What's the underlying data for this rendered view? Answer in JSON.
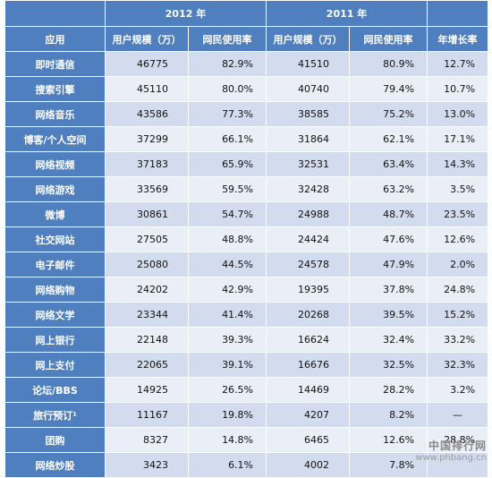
{
  "header": {
    "year_2012": "2012 年",
    "year_2011": "2011 年",
    "col_app": "应用",
    "col_users_2012": "用户规模（万）",
    "col_rate_2012": "网民使用率",
    "col_users_2011": "用户规模（万）",
    "col_rate_2011": "网民使用率",
    "col_growth": "年增长率"
  },
  "rows": [
    {
      "app": "即时通信",
      "u2012": "46775",
      "r2012": "82.9%",
      "u2011": "41510",
      "r2011": "80.9%",
      "growth": "12.7%"
    },
    {
      "app": "搜索引擎",
      "u2012": "45110",
      "r2012": "80.0%",
      "u2011": "40740",
      "r2011": "79.4%",
      "growth": "10.7%"
    },
    {
      "app": "网络音乐",
      "u2012": "43586",
      "r2012": "77.3%",
      "u2011": "38585",
      "r2011": "75.2%",
      "growth": "13.0%"
    },
    {
      "app": "博客/个人空间",
      "u2012": "37299",
      "r2012": "66.1%",
      "u2011": "31864",
      "r2011": "62.1%",
      "growth": "17.1%"
    },
    {
      "app": "网络视频",
      "u2012": "37183",
      "r2012": "65.9%",
      "u2011": "32531",
      "r2011": "63.4%",
      "growth": "14.3%"
    },
    {
      "app": "网络游戏",
      "u2012": "33569",
      "r2012": "59.5%",
      "u2011": "32428",
      "r2011": "63.2%",
      "growth": "3.5%"
    },
    {
      "app": "微博",
      "u2012": "30861",
      "r2012": "54.7%",
      "u2011": "24988",
      "r2011": "48.7%",
      "growth": "23.5%"
    },
    {
      "app": "社交网站",
      "u2012": "27505",
      "r2012": "48.8%",
      "u2011": "24424",
      "r2011": "47.6%",
      "growth": "12.6%"
    },
    {
      "app": "电子邮件",
      "u2012": "25080",
      "r2012": "44.5%",
      "u2011": "24578",
      "r2011": "47.9%",
      "growth": "2.0%"
    },
    {
      "app": "网络购物",
      "u2012": "24202",
      "r2012": "42.9%",
      "u2011": "19395",
      "r2011": "37.8%",
      "growth": "24.8%"
    },
    {
      "app": "网络文学",
      "u2012": "23344",
      "r2012": "41.4%",
      "u2011": "20268",
      "r2011": "39.5%",
      "growth": "15.2%"
    },
    {
      "app": "网上银行",
      "u2012": "22148",
      "r2012": "39.3%",
      "u2011": "16624",
      "r2011": "32.4%",
      "growth": "33.2%"
    },
    {
      "app": "网上支付",
      "u2012": "22065",
      "r2012": "39.1%",
      "u2011": "16676",
      "r2011": "32.5%",
      "growth": "32.3%"
    },
    {
      "app": "论坛/BBS",
      "u2012": "14925",
      "r2012": "26.5%",
      "u2011": "14469",
      "r2011": "28.2%",
      "growth": "3.2%"
    },
    {
      "app": "旅行预订¹",
      "u2012": "11167",
      "r2012": "19.8%",
      "u2011": "4207",
      "r2011": "8.2%",
      "growth": "—"
    },
    {
      "app": "团购",
      "u2012": "8327",
      "r2012": "14.8%",
      "u2011": "6465",
      "r2011": "12.6%",
      "growth": "28.8%"
    },
    {
      "app": "网络炒股",
      "u2012": "3423",
      "r2012": "6.1%",
      "u2011": "4002",
      "r2011": "7.8%",
      "growth": ""
    }
  ],
  "watermark": {
    "site_cn": "中国排行网",
    "url": "www.phbang.cn"
  }
}
